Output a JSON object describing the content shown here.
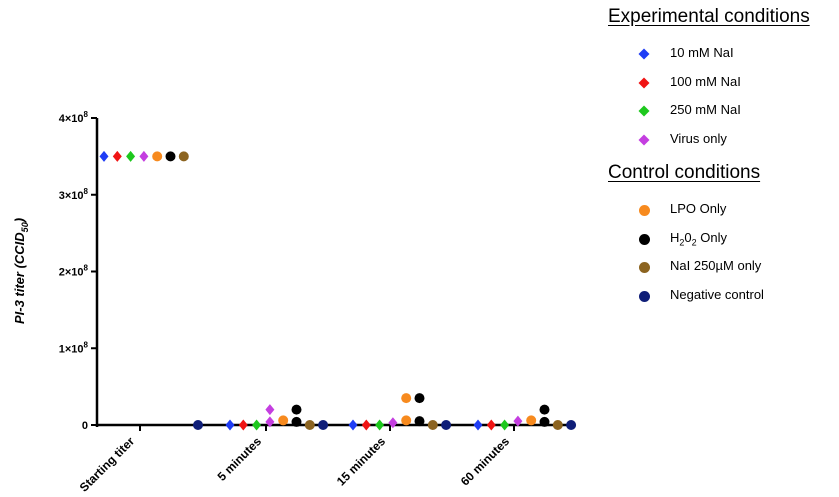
{
  "chart_data": {
    "type": "scatter",
    "ylabel": "PI-3 titer (CCID50)",
    "ylabel_main": "PI-3 titer (CCID",
    "ylabel_sub": "50",
    "ylabel_close": ")",
    "ylim": [
      0,
      400000000
    ],
    "yticks": [
      {
        "value": 0,
        "label": "0"
      },
      {
        "value": 100000000,
        "label": "1×10",
        "exp": "8"
      },
      {
        "value": 200000000,
        "label": "2×10",
        "exp": "8"
      },
      {
        "value": 300000000,
        "label": "3×10",
        "exp": "8"
      },
      {
        "value": 400000000,
        "label": "4×10",
        "exp": "8"
      }
    ],
    "categories": [
      "Starting titer",
      "5 minutes",
      "15 minutes",
      "60 minutes"
    ],
    "series": [
      {
        "name": "10 mM NaI",
        "group": "experimental",
        "shape": "diamond",
        "color": "#1f3df5",
        "values": [
          350000000,
          0,
          0,
          0
        ]
      },
      {
        "name": "100 mM NaI",
        "group": "experimental",
        "shape": "diamond",
        "color": "#f01414",
        "values": [
          350000000,
          0,
          0,
          0
        ]
      },
      {
        "name": "250 mM NaI",
        "group": "experimental",
        "shape": "diamond",
        "color": "#1dc81d",
        "values": [
          350000000,
          0,
          0,
          0
        ]
      },
      {
        "name": "Virus only",
        "group": "experimental",
        "shape": "diamond",
        "color": "#c43ee0",
        "values": [
          350000000,
          [
            20000000,
            4000000
          ],
          3000000,
          5000000
        ]
      },
      {
        "name": "LPO Only",
        "group": "control",
        "shape": "circle",
        "color": "#f78a1e",
        "values": [
          350000000,
          6000000,
          [
            35000000,
            6000000
          ],
          6000000
        ]
      },
      {
        "name": "H202 Only",
        "group": "control",
        "shape": "circle",
        "color": "#000000",
        "values": [
          350000000,
          [
            20000000,
            4000000
          ],
          [
            35000000,
            5000000
          ],
          [
            20000000,
            4000000
          ]
        ]
      },
      {
        "name": "NaI 250µM only",
        "group": "control",
        "shape": "circle",
        "color": "#8c6420",
        "values": [
          350000000,
          0,
          0,
          0
        ]
      },
      {
        "name": "Negative control",
        "group": "control",
        "shape": "circle",
        "color": "#0f1e78",
        "values": [
          0,
          0,
          0,
          0
        ]
      }
    ]
  },
  "legend": {
    "experimental_title": "Experimental conditions",
    "control_title": "Control conditions",
    "experimental": [
      {
        "label": "10 mM NaI",
        "color": "#1f3df5"
      },
      {
        "label": "100 mM NaI",
        "color": "#f01414"
      },
      {
        "label": "250 mM NaI",
        "color": "#1dc81d"
      },
      {
        "label": "Virus only",
        "color": "#c43ee0"
      }
    ],
    "control": [
      {
        "label": "LPO Only",
        "color": "#f78a1e"
      },
      {
        "label_pre": "H",
        "label_sub1": "2",
        "label_mid": "0",
        "label_sub2": "2",
        "label_post": " Only",
        "color": "#000000"
      },
      {
        "label": "NaI 250µM only",
        "color": "#8c6420"
      },
      {
        "label": "Negative control",
        "color": "#0f1e78"
      }
    ]
  }
}
